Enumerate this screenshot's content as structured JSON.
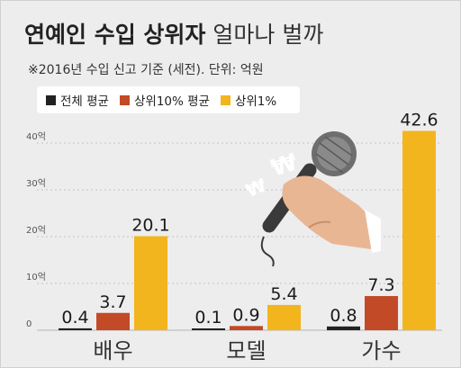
{
  "title": {
    "bold": "연예인 수입 상위자",
    "light": "얼마나 벌까"
  },
  "note": "※2016년 수입 신고 기준 (세전). 단위: 억원",
  "legend": [
    {
      "label": "전체 평균",
      "color": "#222222"
    },
    {
      "label": "상위10% 평균",
      "color": "#c24a26"
    },
    {
      "label": "상위1%",
      "color": "#f2b51d"
    }
  ],
  "chart_data": {
    "type": "bar",
    "categories": [
      "배우",
      "모델",
      "가수"
    ],
    "series": [
      {
        "name": "전체 평균",
        "values": [
          0.4,
          0.1,
          0.8
        ]
      },
      {
        "name": "상위10% 평균",
        "values": [
          3.7,
          0.9,
          7.3
        ]
      },
      {
        "name": "상위1%",
        "values": [
          20.1,
          5.4,
          42.6
        ]
      }
    ],
    "value_labels": [
      [
        "0.4",
        "0.1",
        "0.8"
      ],
      [
        "3.7",
        "0.9",
        "7.3"
      ],
      [
        "20.1",
        "5.4",
        "42.6"
      ]
    ],
    "yticks": [
      {
        "value": 0,
        "label": "0"
      },
      {
        "value": 10,
        "label": "10억"
      },
      {
        "value": 20,
        "label": "20억"
      },
      {
        "value": 30,
        "label": "30억"
      },
      {
        "value": 40,
        "label": "40억"
      }
    ],
    "ylim": [
      0,
      45
    ],
    "grid": true,
    "legend_position": "top-left",
    "colors": [
      "#222222",
      "#c24a26",
      "#f2b51d"
    ]
  },
  "illustration": {
    "icon": "microphone-with-hand-icon",
    "currency_symbols": [
      "₩",
      "₩"
    ]
  }
}
